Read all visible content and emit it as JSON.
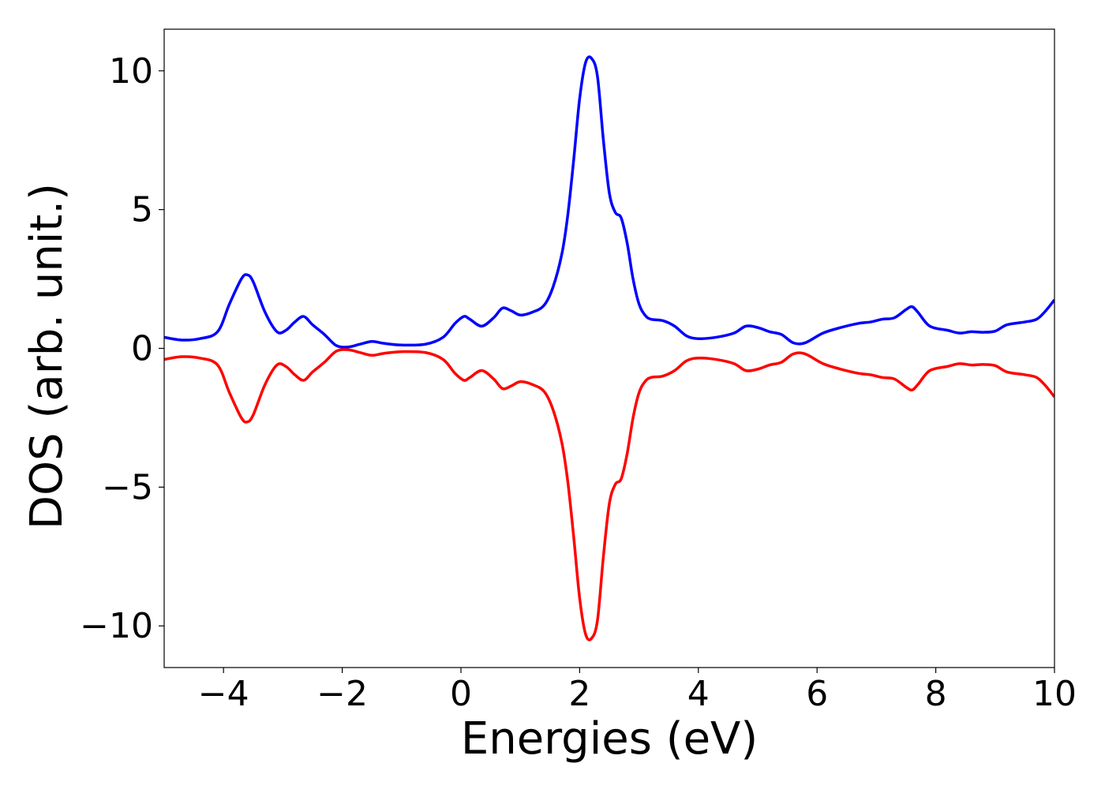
{
  "chart_data": {
    "type": "line",
    "title": "",
    "xlabel": "Energies (eV)",
    "ylabel": "DOS (arb. unit.)",
    "xlim": [
      -5,
      10
    ],
    "ylim": [
      -11.5,
      11.5
    ],
    "xticks": [
      -4,
      -2,
      0,
      2,
      4,
      6,
      8,
      10
    ],
    "xtick_labels": [
      "−4",
      "−2",
      "0",
      "2",
      "4",
      "6",
      "8",
      "10"
    ],
    "yticks": [
      -10,
      -5,
      0,
      5,
      10
    ],
    "ytick_labels": [
      "−10",
      "−5",
      "0",
      "5",
      "10"
    ],
    "grid": false,
    "legend": "none",
    "series": [
      {
        "color": "#0000ff",
        "x": [
          -5.0,
          -4.7,
          -4.4,
          -4.1,
          -3.9,
          -3.7,
          -3.6,
          -3.5,
          -3.3,
          -3.1,
          -2.95,
          -2.8,
          -2.65,
          -2.5,
          -2.3,
          -2.1,
          -1.9,
          -1.7,
          -1.5,
          -1.3,
          -1.0,
          -0.6,
          -0.3,
          -0.1,
          0.05,
          0.15,
          0.35,
          0.55,
          0.7,
          0.85,
          1.0,
          1.2,
          1.4,
          1.55,
          1.7,
          1.8,
          1.9,
          2.0,
          2.1,
          2.2,
          2.3,
          2.4,
          2.5,
          2.6,
          2.7,
          2.8,
          2.9,
          3.0,
          3.1,
          3.2,
          3.4,
          3.6,
          3.8,
          4.0,
          4.3,
          4.6,
          4.8,
          5.0,
          5.2,
          5.4,
          5.6,
          5.8,
          6.1,
          6.4,
          6.7,
          6.9,
          7.1,
          7.3,
          7.5,
          7.6,
          7.7,
          7.9,
          8.2,
          8.4,
          8.6,
          8.8,
          9.0,
          9.2,
          9.5,
          9.7,
          9.85,
          10.0
        ],
        "values": [
          0.4,
          0.3,
          0.35,
          0.6,
          1.6,
          2.5,
          2.65,
          2.4,
          1.3,
          0.6,
          0.65,
          0.95,
          1.15,
          0.85,
          0.5,
          0.1,
          0.05,
          0.15,
          0.25,
          0.18,
          0.12,
          0.15,
          0.4,
          0.9,
          1.15,
          1.05,
          0.8,
          1.1,
          1.45,
          1.35,
          1.2,
          1.3,
          1.55,
          2.2,
          3.4,
          4.8,
          6.8,
          9.0,
          10.3,
          10.45,
          9.8,
          7.5,
          5.6,
          4.9,
          4.7,
          3.8,
          2.5,
          1.6,
          1.2,
          1.05,
          1.0,
          0.8,
          0.45,
          0.35,
          0.4,
          0.55,
          0.8,
          0.75,
          0.6,
          0.5,
          0.2,
          0.2,
          0.55,
          0.75,
          0.9,
          0.95,
          1.05,
          1.1,
          1.4,
          1.5,
          1.3,
          0.8,
          0.65,
          0.55,
          0.6,
          0.58,
          0.62,
          0.85,
          0.95,
          1.05,
          1.35,
          1.75
        ]
      },
      {
        "color": "#ff0000",
        "x": [
          -5.0,
          -4.7,
          -4.4,
          -4.1,
          -3.9,
          -3.7,
          -3.6,
          -3.5,
          -3.3,
          -3.1,
          -2.95,
          -2.8,
          -2.65,
          -2.5,
          -2.3,
          -2.1,
          -1.9,
          -1.7,
          -1.5,
          -1.3,
          -1.0,
          -0.6,
          -0.3,
          -0.1,
          0.05,
          0.15,
          0.35,
          0.55,
          0.7,
          0.85,
          1.0,
          1.2,
          1.4,
          1.55,
          1.7,
          1.8,
          1.9,
          2.0,
          2.1,
          2.2,
          2.3,
          2.4,
          2.5,
          2.6,
          2.7,
          2.8,
          2.9,
          3.0,
          3.1,
          3.2,
          3.4,
          3.6,
          3.8,
          4.0,
          4.3,
          4.6,
          4.8,
          5.0,
          5.2,
          5.4,
          5.6,
          5.8,
          6.1,
          6.4,
          6.7,
          6.9,
          7.1,
          7.3,
          7.5,
          7.6,
          7.7,
          7.9,
          8.2,
          8.4,
          8.6,
          8.8,
          9.0,
          9.2,
          9.5,
          9.7,
          9.85,
          10.0
        ],
        "values": [
          -0.4,
          -0.3,
          -0.35,
          -0.6,
          -1.6,
          -2.5,
          -2.65,
          -2.4,
          -1.3,
          -0.6,
          -0.65,
          -0.95,
          -1.15,
          -0.85,
          -0.5,
          -0.1,
          -0.05,
          -0.15,
          -0.25,
          -0.18,
          -0.12,
          -0.15,
          -0.4,
          -0.9,
          -1.15,
          -1.05,
          -0.8,
          -1.1,
          -1.45,
          -1.35,
          -1.2,
          -1.3,
          -1.55,
          -2.2,
          -3.4,
          -4.8,
          -6.8,
          -9.0,
          -10.3,
          -10.45,
          -9.8,
          -7.5,
          -5.6,
          -4.9,
          -4.7,
          -3.8,
          -2.5,
          -1.6,
          -1.2,
          -1.05,
          -1.0,
          -0.8,
          -0.45,
          -0.35,
          -0.4,
          -0.55,
          -0.8,
          -0.75,
          -0.6,
          -0.5,
          -0.2,
          -0.2,
          -0.55,
          -0.75,
          -0.9,
          -0.95,
          -1.05,
          -1.1,
          -1.4,
          -1.5,
          -1.3,
          -0.8,
          -0.65,
          -0.55,
          -0.6,
          -0.58,
          -0.62,
          -0.85,
          -0.95,
          -1.05,
          -1.35,
          -1.75
        ]
      }
    ]
  }
}
